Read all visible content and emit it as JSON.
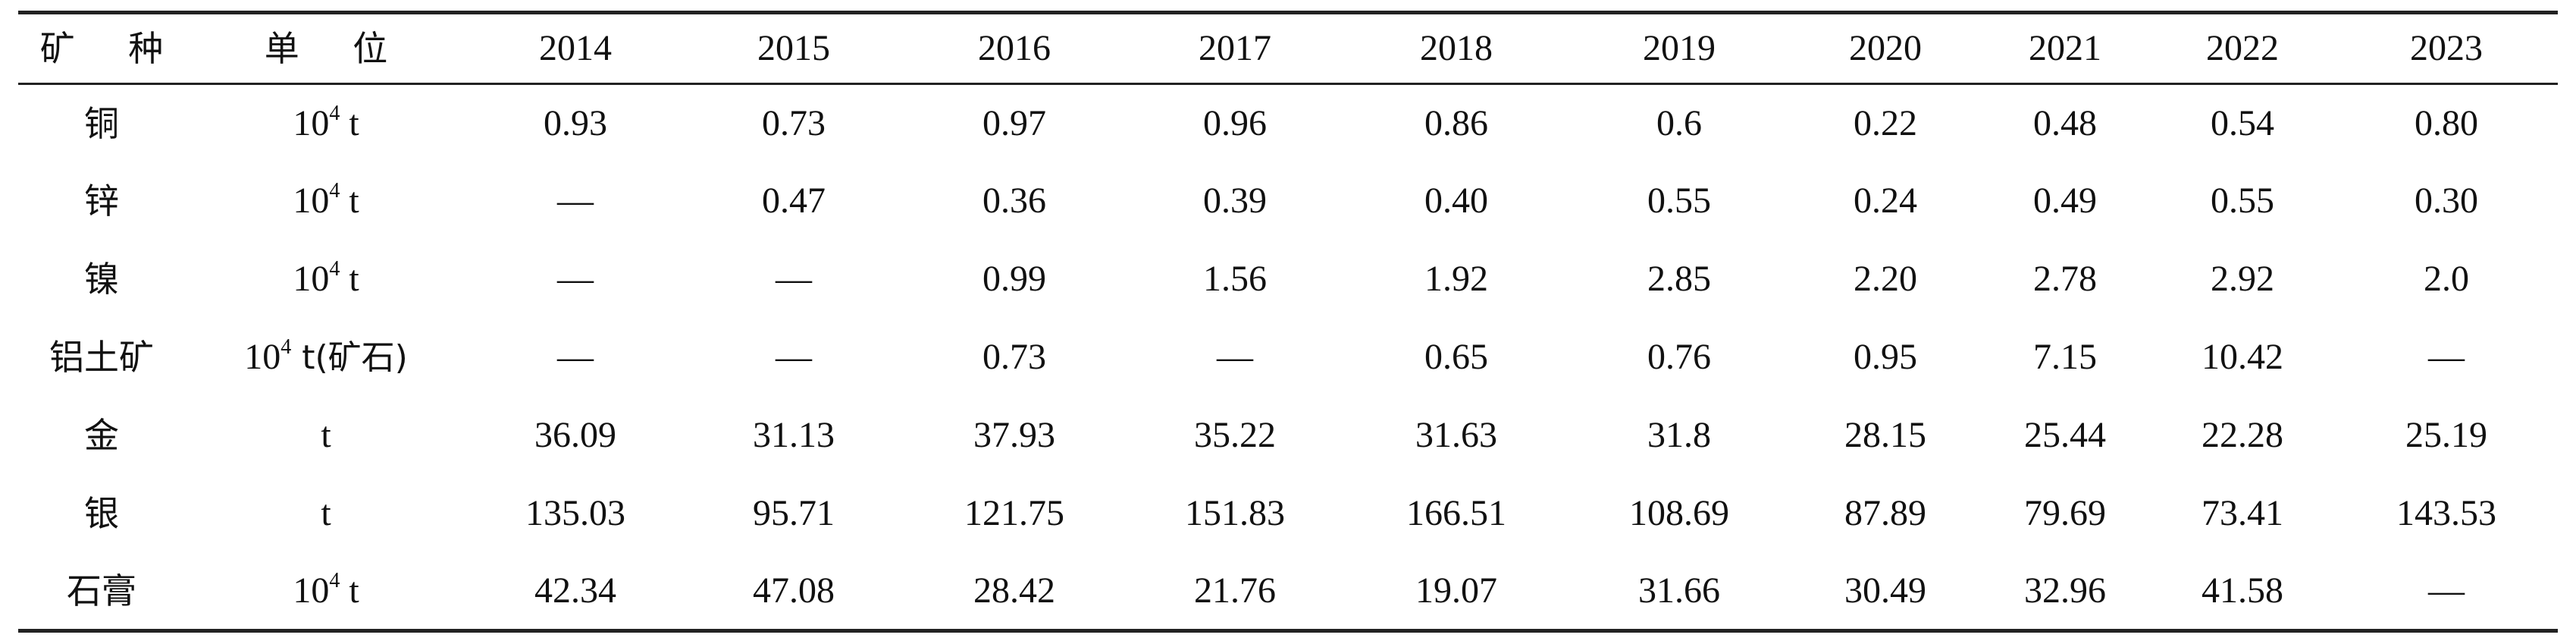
{
  "chart_data": {
    "type": "table",
    "columns": [
      "矿 种",
      "单 位",
      "2014",
      "2015",
      "2016",
      "2017",
      "2018",
      "2019",
      "2020",
      "2021",
      "2022",
      "2023"
    ],
    "rows": [
      {
        "mineral": "铜",
        "unit_base": "10",
        "unit_exp": "4",
        "unit_rest": " t",
        "values": [
          "0.93",
          "0.73",
          "0.97",
          "0.96",
          "0.86",
          "0.6",
          "0.22",
          "0.48",
          "0.54",
          "0.80"
        ]
      },
      {
        "mineral": "锌",
        "unit_base": "10",
        "unit_exp": "4",
        "unit_rest": " t",
        "values": [
          "—",
          "0.47",
          "0.36",
          "0.39",
          "0.40",
          "0.55",
          "0.24",
          "0.49",
          "0.55",
          "0.30"
        ]
      },
      {
        "mineral": "镍",
        "unit_base": "10",
        "unit_exp": "4",
        "unit_rest": " t",
        "values": [
          "—",
          "—",
          "0.99",
          "1.56",
          "1.92",
          "2.85",
          "2.20",
          "2.78",
          "2.92",
          "2.0"
        ]
      },
      {
        "mineral": "铝土矿",
        "unit_base": "10",
        "unit_exp": "4",
        "unit_rest": " t(矿石)",
        "values": [
          "—",
          "—",
          "0.73",
          "—",
          "0.65",
          "0.76",
          "0.95",
          "7.15",
          "10.42",
          "—"
        ]
      },
      {
        "mineral": "金",
        "unit_base": "",
        "unit_exp": "",
        "unit_rest": "t",
        "values": [
          "36.09",
          "31.13",
          "37.93",
          "35.22",
          "31.63",
          "31.8",
          "28.15",
          "25.44",
          "22.28",
          "25.19"
        ]
      },
      {
        "mineral": "银",
        "unit_base": "",
        "unit_exp": "",
        "unit_rest": "t",
        "values": [
          "135.03",
          "95.71",
          "121.75",
          "151.83",
          "166.51",
          "108.69",
          "87.89",
          "79.69",
          "73.41",
          "143.53"
        ]
      },
      {
        "mineral": "石膏",
        "unit_base": "10",
        "unit_exp": "4",
        "unit_rest": " t",
        "values": [
          "42.34",
          "47.08",
          "28.42",
          "21.76",
          "19.07",
          "31.66",
          "30.49",
          "32.96",
          "41.58",
          "—"
        ]
      }
    ]
  }
}
